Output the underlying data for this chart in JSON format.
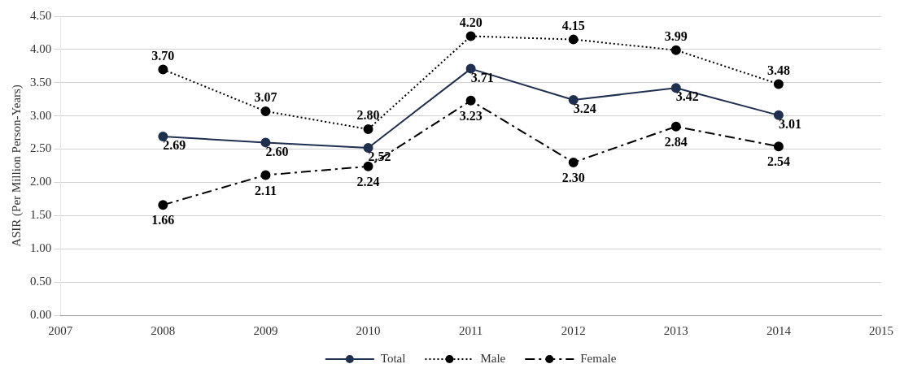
{
  "chart_data": {
    "type": "line",
    "ylabel": "ASIR (Per Million Person-Years)",
    "x": [
      2008,
      2009,
      2010,
      2011,
      2012,
      2013,
      2014
    ],
    "xlim": [
      2007,
      2015
    ],
    "xticks": [
      2007,
      2008,
      2009,
      2010,
      2011,
      2012,
      2013,
      2014,
      2015
    ],
    "ylim": [
      0,
      4.5
    ],
    "yticks": [
      {
        "value": 0,
        "label": "0.00"
      },
      {
        "value": 0.5,
        "label": "0.50"
      },
      {
        "value": 1,
        "label": "1.00"
      },
      {
        "value": 1.5,
        "label": "1.50"
      },
      {
        "value": 2,
        "label": "2.00"
      },
      {
        "value": 2.5,
        "label": "2.50"
      },
      {
        "value": 3,
        "label": "3.00"
      },
      {
        "value": 3.5,
        "label": "3.50"
      },
      {
        "value": 4,
        "label": "4.00"
      },
      {
        "value": 4.5,
        "label": "4.50"
      }
    ],
    "grid": "y",
    "legend": "bottom",
    "marker": "circle",
    "series": [
      {
        "name": "Total",
        "color": "#1f2f4f",
        "line_style": "solid",
        "values": [
          2.69,
          2.6,
          2.52,
          3.71,
          3.24,
          3.42,
          3.01
        ],
        "value_labels": [
          "2.69",
          "2.60",
          "2.52",
          "3.71",
          "3.24",
          "3.42",
          "3.01"
        ]
      },
      {
        "name": "Male",
        "color": "#000000",
        "line_style": "dotted",
        "values": [
          3.7,
          3.07,
          2.8,
          4.2,
          4.15,
          3.99,
          3.48
        ],
        "value_labels": [
          "3.70",
          "3.07",
          "2.80",
          "4.20",
          "4.15",
          "3.99",
          "3.48"
        ]
      },
      {
        "name": "Female",
        "color": "#000000",
        "line_style": "dashed",
        "values": [
          1.66,
          2.11,
          2.24,
          3.23,
          2.3,
          2.84,
          2.54
        ],
        "value_labels": [
          "1.66",
          "2.11",
          "2.24",
          "3.23",
          "2.30",
          "2.84",
          "2.54"
        ]
      }
    ]
  }
}
